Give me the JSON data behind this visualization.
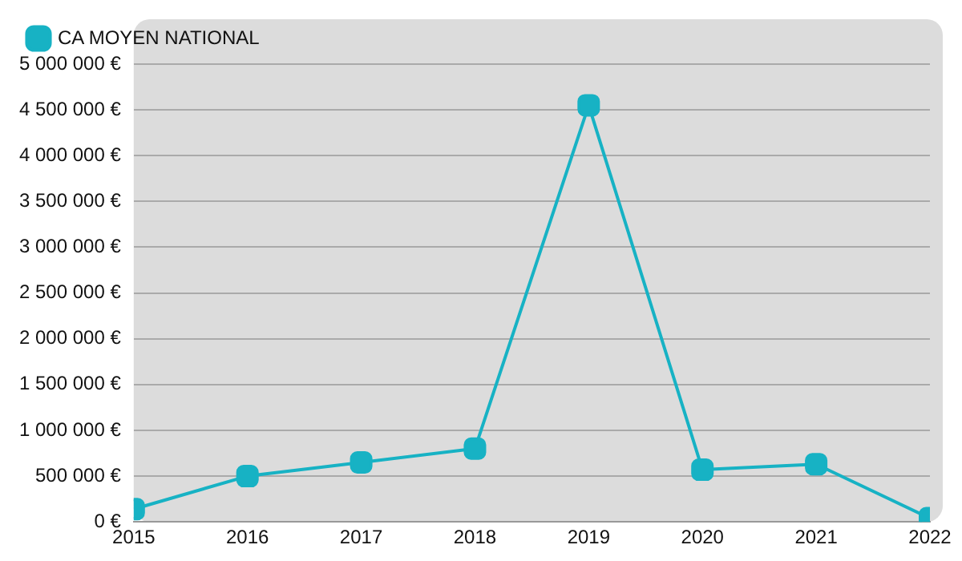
{
  "chart_data": {
    "type": "line",
    "x": [
      2015,
      2016,
      2017,
      2018,
      2019,
      2020,
      2021,
      2022
    ],
    "series": [
      {
        "name": "CA MOYEN NATIONAL",
        "color": "#17b2c4",
        "values": [
          140000,
          500000,
          650000,
          800000,
          4550000,
          570000,
          630000,
          40000
        ]
      }
    ],
    "xlim": [
      2015,
      2022
    ],
    "xticks": [
      2015,
      2016,
      2017,
      2018,
      2019,
      2020,
      2021,
      2022
    ],
    "ylim": [
      0,
      5000000
    ],
    "yticks": [
      {
        "value": 0,
        "label": "0 €"
      },
      {
        "value": 500000,
        "label": "500 000 €"
      },
      {
        "value": 1000000,
        "label": "1 000 000 €"
      },
      {
        "value": 1500000,
        "label": "1 500 000 €"
      },
      {
        "value": 2000000,
        "label": "2 000 000 €"
      },
      {
        "value": 2500000,
        "label": "2 500 000 €"
      },
      {
        "value": 3000000,
        "label": "3 000 000 €"
      },
      {
        "value": 3500000,
        "label": "3 500 000 €"
      },
      {
        "value": 4000000,
        "label": "4 000 000 €"
      },
      {
        "value": 4500000,
        "label": "4 500 000 €"
      },
      {
        "value": 5000000,
        "label": "5 000 000 €"
      }
    ],
    "grid": "y",
    "legend": "top left",
    "marker": "square",
    "line_style": "solid"
  }
}
